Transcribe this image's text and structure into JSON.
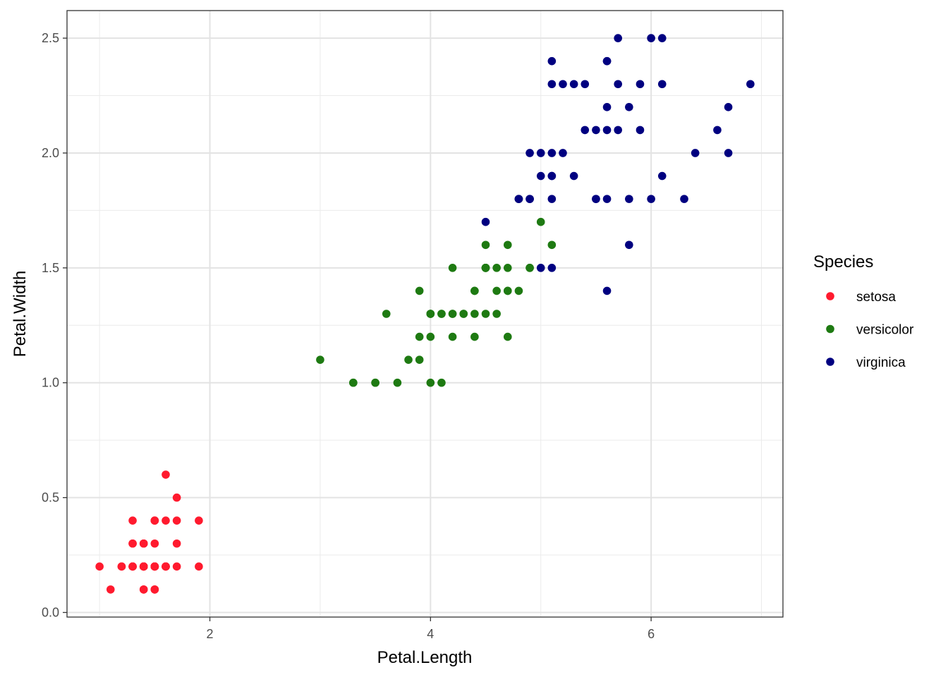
{
  "chart_data": {
    "type": "scatter",
    "title": "",
    "xlabel": "Petal.Length",
    "ylabel": "Petal.Width",
    "xlim": [
      0.705,
      7.195
    ],
    "ylim": [
      -0.02,
      2.62
    ],
    "x_major_ticks": [
      2,
      4,
      6
    ],
    "x_minor_ticks": [
      1,
      3,
      5,
      7
    ],
    "y_major_ticks": [
      0.0,
      0.5,
      1.0,
      1.5,
      2.0,
      2.5
    ],
    "y_minor_ticks": [
      0.25,
      0.75,
      1.25,
      1.75,
      2.25
    ],
    "x_tick_labels": [
      "2",
      "4",
      "6"
    ],
    "y_tick_labels": [
      "0.0",
      "0.5",
      "1.0",
      "1.5",
      "2.0",
      "2.5"
    ],
    "grid": true,
    "legend": {
      "title": "Species",
      "position": "right"
    },
    "series": [
      {
        "name": "setosa",
        "color": "#ff1a2e",
        "points": [
          [
            1.4,
            0.2
          ],
          [
            1.4,
            0.2
          ],
          [
            1.3,
            0.2
          ],
          [
            1.5,
            0.2
          ],
          [
            1.4,
            0.2
          ],
          [
            1.7,
            0.4
          ],
          [
            1.4,
            0.3
          ],
          [
            1.5,
            0.2
          ],
          [
            1.4,
            0.2
          ],
          [
            1.5,
            0.1
          ],
          [
            1.5,
            0.2
          ],
          [
            1.6,
            0.2
          ],
          [
            1.4,
            0.1
          ],
          [
            1.1,
            0.1
          ],
          [
            1.2,
            0.2
          ],
          [
            1.5,
            0.4
          ],
          [
            1.3,
            0.4
          ],
          [
            1.4,
            0.3
          ],
          [
            1.7,
            0.3
          ],
          [
            1.5,
            0.3
          ],
          [
            1.7,
            0.2
          ],
          [
            1.5,
            0.4
          ],
          [
            1.0,
            0.2
          ],
          [
            1.7,
            0.5
          ],
          [
            1.9,
            0.2
          ],
          [
            1.6,
            0.2
          ],
          [
            1.6,
            0.4
          ],
          [
            1.5,
            0.2
          ],
          [
            1.4,
            0.2
          ],
          [
            1.6,
            0.2
          ],
          [
            1.6,
            0.2
          ],
          [
            1.5,
            0.4
          ],
          [
            1.5,
            0.1
          ],
          [
            1.4,
            0.2
          ],
          [
            1.5,
            0.2
          ],
          [
            1.2,
            0.2
          ],
          [
            1.3,
            0.2
          ],
          [
            1.4,
            0.1
          ],
          [
            1.3,
            0.2
          ],
          [
            1.5,
            0.2
          ],
          [
            1.3,
            0.3
          ],
          [
            1.3,
            0.3
          ],
          [
            1.3,
            0.2
          ],
          [
            1.6,
            0.6
          ],
          [
            1.9,
            0.4
          ],
          [
            1.4,
            0.3
          ],
          [
            1.6,
            0.2
          ],
          [
            1.4,
            0.2
          ],
          [
            1.5,
            0.2
          ],
          [
            1.4,
            0.2
          ]
        ]
      },
      {
        "name": "versicolor",
        "color": "#1e7a12",
        "points": [
          [
            4.7,
            1.4
          ],
          [
            4.5,
            1.5
          ],
          [
            4.9,
            1.5
          ],
          [
            4.0,
            1.3
          ],
          [
            4.6,
            1.5
          ],
          [
            4.5,
            1.3
          ],
          [
            4.7,
            1.6
          ],
          [
            3.3,
            1.0
          ],
          [
            4.6,
            1.3
          ],
          [
            3.9,
            1.4
          ],
          [
            3.5,
            1.0
          ],
          [
            4.2,
            1.5
          ],
          [
            4.0,
            1.0
          ],
          [
            4.7,
            1.4
          ],
          [
            3.6,
            1.3
          ],
          [
            4.4,
            1.4
          ],
          [
            4.5,
            1.5
          ],
          [
            4.1,
            1.0
          ],
          [
            4.5,
            1.5
          ],
          [
            3.9,
            1.1
          ],
          [
            4.8,
            1.8
          ],
          [
            4.0,
            1.3
          ],
          [
            4.9,
            1.5
          ],
          [
            4.7,
            1.2
          ],
          [
            4.3,
            1.3
          ],
          [
            4.4,
            1.4
          ],
          [
            4.8,
            1.4
          ],
          [
            5.0,
            1.7
          ],
          [
            4.5,
            1.5
          ],
          [
            3.5,
            1.0
          ],
          [
            3.8,
            1.1
          ],
          [
            3.7,
            1.0
          ],
          [
            3.9,
            1.2
          ],
          [
            5.1,
            1.6
          ],
          [
            4.5,
            1.5
          ],
          [
            4.5,
            1.6
          ],
          [
            4.7,
            1.5
          ],
          [
            4.4,
            1.3
          ],
          [
            4.1,
            1.3
          ],
          [
            4.0,
            1.3
          ],
          [
            4.4,
            1.2
          ],
          [
            4.6,
            1.4
          ],
          [
            4.0,
            1.2
          ],
          [
            3.3,
            1.0
          ],
          [
            4.2,
            1.3
          ],
          [
            4.2,
            1.2
          ],
          [
            4.2,
            1.3
          ],
          [
            4.3,
            1.3
          ],
          [
            3.0,
            1.1
          ],
          [
            4.1,
            1.3
          ]
        ]
      },
      {
        "name": "virginica",
        "color": "#000080",
        "points": [
          [
            6.0,
            2.5
          ],
          [
            5.1,
            1.9
          ],
          [
            5.9,
            2.1
          ],
          [
            5.6,
            1.8
          ],
          [
            5.8,
            2.2
          ],
          [
            6.6,
            2.1
          ],
          [
            4.5,
            1.7
          ],
          [
            6.3,
            1.8
          ],
          [
            5.8,
            1.8
          ],
          [
            6.1,
            2.5
          ],
          [
            5.1,
            2.0
          ],
          [
            5.3,
            1.9
          ],
          [
            5.5,
            2.1
          ],
          [
            5.0,
            2.0
          ],
          [
            5.1,
            2.4
          ],
          [
            5.3,
            2.3
          ],
          [
            5.5,
            1.8
          ],
          [
            6.7,
            2.2
          ],
          [
            6.9,
            2.3
          ],
          [
            5.0,
            1.5
          ],
          [
            5.7,
            2.3
          ],
          [
            4.9,
            2.0
          ],
          [
            6.7,
            2.0
          ],
          [
            4.9,
            1.8
          ],
          [
            5.7,
            2.1
          ],
          [
            6.0,
            1.8
          ],
          [
            4.8,
            1.8
          ],
          [
            4.9,
            1.8
          ],
          [
            5.6,
            2.1
          ],
          [
            5.8,
            1.6
          ],
          [
            6.1,
            1.9
          ],
          [
            6.4,
            2.0
          ],
          [
            5.6,
            2.2
          ],
          [
            5.1,
            1.5
          ],
          [
            5.6,
            1.4
          ],
          [
            6.1,
            2.3
          ],
          [
            5.6,
            2.4
          ],
          [
            5.5,
            1.8
          ],
          [
            4.8,
            1.8
          ],
          [
            5.4,
            2.1
          ],
          [
            5.6,
            2.4
          ],
          [
            5.1,
            2.3
          ],
          [
            5.1,
            1.9
          ],
          [
            5.9,
            2.3
          ],
          [
            5.7,
            2.5
          ],
          [
            5.2,
            2.3
          ],
          [
            5.0,
            1.9
          ],
          [
            5.2,
            2.0
          ],
          [
            5.4,
            2.3
          ],
          [
            5.1,
            1.8
          ]
        ]
      }
    ]
  }
}
